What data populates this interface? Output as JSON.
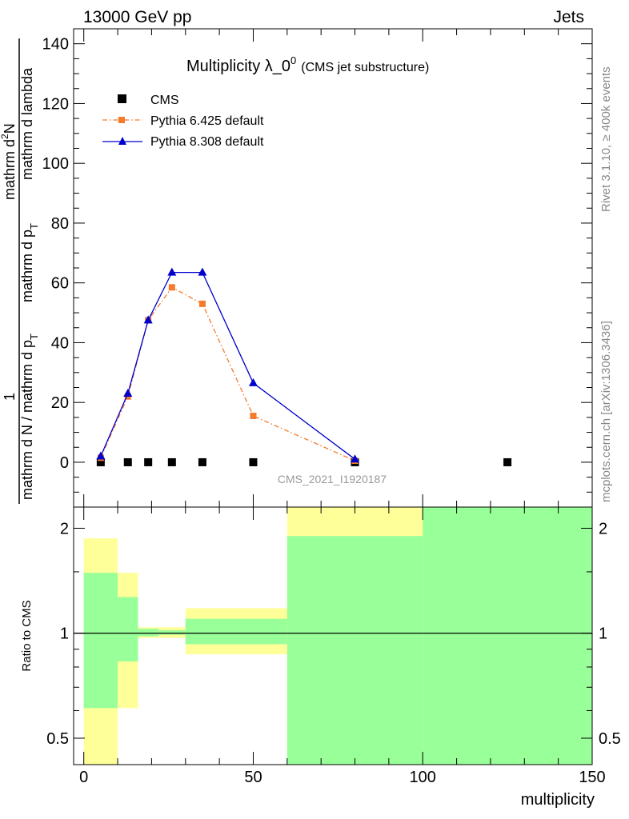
{
  "header": {
    "left": "13000 GeV pp",
    "right": "Jets"
  },
  "side": {
    "rivet": "Rivet 3.1.10, ≥ 400k events",
    "mcplots": "mcplots.cern.ch [arXiv:1306.3436]"
  },
  "chart_data": [
    {
      "type": "line",
      "title": "Multiplicity λ_0",
      "title_sup": "0",
      "subtitle": "(CMS jet substructure)",
      "watermark": "CMS_2021_I1920187",
      "ylabel_num": "1",
      "ylabel_den": "mathrm d N / mathrm d p",
      "ylabel_den_sub": "T",
      "ylabel_top_line1": "mathrm d",
      "ylabel_top_sup": "2",
      "ylabel_top_n": "N",
      "ylabel_top_line2": "mathrm d p",
      "ylabel_top_line2_sub": "T",
      "ylabel_top_line3": "mathrm d lambda",
      "xlim": [
        -3,
        150
      ],
      "ylim": [
        -15,
        145
      ],
      "yticks": [
        0,
        20,
        40,
        60,
        80,
        100,
        120,
        140
      ],
      "ytick_labels": [
        "0",
        "20",
        "40",
        "60",
        "80",
        "100",
        "120",
        "140"
      ],
      "legend": "top-left",
      "series": [
        {
          "name": "CMS",
          "color": "#000000",
          "marker": "square",
          "x": [
            5,
            13,
            19,
            26,
            35,
            50,
            80,
            125
          ],
          "y": [
            0,
            0,
            0,
            0,
            0,
            0,
            0,
            0
          ]
        },
        {
          "name": "Pythia 6.425 default",
          "color": "#f57a2a",
          "marker": "square",
          "dash": "dashdot",
          "x": [
            5,
            13,
            19,
            26,
            35,
            50,
            80
          ],
          "y": [
            1.5,
            22,
            47.5,
            58.5,
            53,
            15.5,
            0.5
          ]
        },
        {
          "name": "Pythia 8.308 default",
          "color": "#0000cc",
          "marker": "triangle",
          "x": [
            5,
            13,
            19,
            26,
            35,
            50,
            80
          ],
          "y": [
            2,
            23,
            47.5,
            63.5,
            63.5,
            26.5,
            1
          ]
        }
      ]
    },
    {
      "type": "area",
      "ylabel": "Ratio to CMS",
      "xlabel": "multiplicity",
      "log_y": true,
      "xlim": [
        -3,
        150
      ],
      "ylim": [
        0.42,
        2.3
      ],
      "yticks": [
        0.5,
        1,
        2
      ],
      "ytick_labels": [
        "0.5",
        "1",
        "2"
      ],
      "xticks": [
        0,
        50,
        100,
        150
      ],
      "xtick_labels": [
        "0",
        "50",
        "100",
        "150"
      ],
      "reference_line": 1,
      "bands": [
        {
          "xlo": 0,
          "xhi": 10,
          "yellow": [
            0.42,
            1.87
          ],
          "green": [
            0.61,
            1.49
          ]
        },
        {
          "xlo": 10,
          "xhi": 16,
          "yellow": [
            0.61,
            1.49
          ],
          "green": [
            0.83,
            1.27
          ]
        },
        {
          "xlo": 16,
          "xhi": 22,
          "yellow": [
            0.97,
            1.04
          ],
          "green": [
            0.98,
            1.03
          ]
        },
        {
          "xlo": 22,
          "xhi": 30,
          "yellow": [
            0.97,
            1.04
          ],
          "green": [
            0.99,
            1.02
          ]
        },
        {
          "xlo": 30,
          "xhi": 60,
          "yellow": [
            0.87,
            1.18
          ],
          "green": [
            0.93,
            1.1
          ]
        },
        {
          "xlo": 60,
          "xhi": 100,
          "yellow": [
            0.42,
            2.3
          ],
          "green": [
            0.42,
            1.9
          ]
        },
        {
          "xlo": 100,
          "xhi": 150,
          "yellow": [
            0.42,
            2.3
          ],
          "green": [
            0.42,
            2.3
          ]
        }
      ],
      "colors": {
        "yellow": "#ffff99",
        "green": "#99ff99"
      }
    }
  ]
}
